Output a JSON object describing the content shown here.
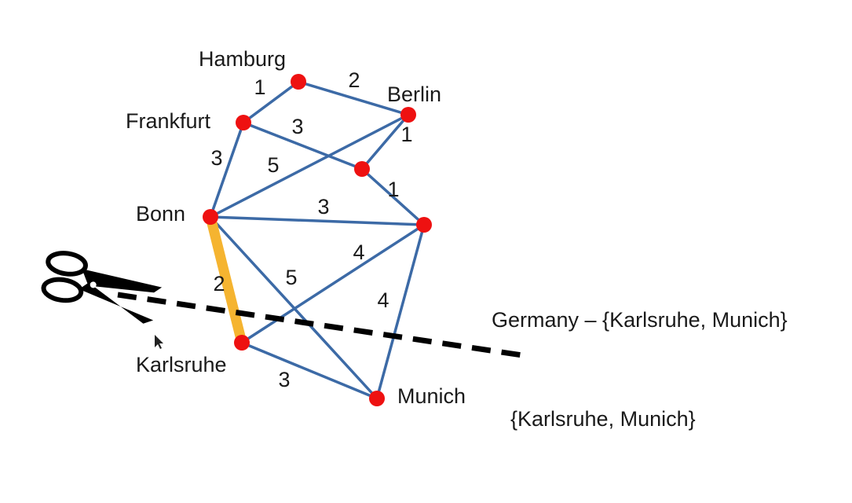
{
  "colors": {
    "edge": "#3c6aa6",
    "highlight": "#f5b430",
    "node": "#ee1111",
    "cut_line": "#000000"
  },
  "nodes": [
    {
      "id": "hamburg",
      "label": "Hamburg"
    },
    {
      "id": "frankfurt",
      "label": "Frankfurt"
    },
    {
      "id": "berlin",
      "label": "Berlin"
    },
    {
      "id": "mid",
      "label": ""
    },
    {
      "id": "bonn",
      "label": "Bonn"
    },
    {
      "id": "east",
      "label": ""
    },
    {
      "id": "karlsruhe",
      "label": "Karlsruhe"
    },
    {
      "id": "munich",
      "label": "Munich"
    }
  ],
  "edges": [
    {
      "from": "frankfurt",
      "to": "hamburg",
      "weight": "1"
    },
    {
      "from": "hamburg",
      "to": "berlin",
      "weight": "2"
    },
    {
      "from": "frankfurt",
      "to": "mid",
      "weight": "3"
    },
    {
      "from": "berlin",
      "to": "mid",
      "weight": "1"
    },
    {
      "from": "frankfurt",
      "to": "bonn",
      "weight": "3"
    },
    {
      "from": "bonn",
      "to": "berlin",
      "weight": "5"
    },
    {
      "from": "mid",
      "to": "east",
      "weight": "1"
    },
    {
      "from": "bonn",
      "to": "east",
      "weight": "3"
    },
    {
      "from": "karlsruhe",
      "to": "east",
      "weight": "4"
    },
    {
      "from": "bonn",
      "to": "munich",
      "weight": "5"
    },
    {
      "from": "east",
      "to": "munich",
      "weight": "4"
    },
    {
      "from": "bonn",
      "to": "karlsruhe",
      "weight": "2",
      "highlighted": true
    },
    {
      "from": "karlsruhe",
      "to": "munich",
      "weight": "3"
    }
  ],
  "captions": {
    "cut_set": "Germany – {Karlsruhe, Munich}",
    "subset": "{Karlsruhe, Munich}"
  },
  "icons": {
    "scissors": "scissors-icon",
    "cursor": "mouse-pointer-icon"
  }
}
